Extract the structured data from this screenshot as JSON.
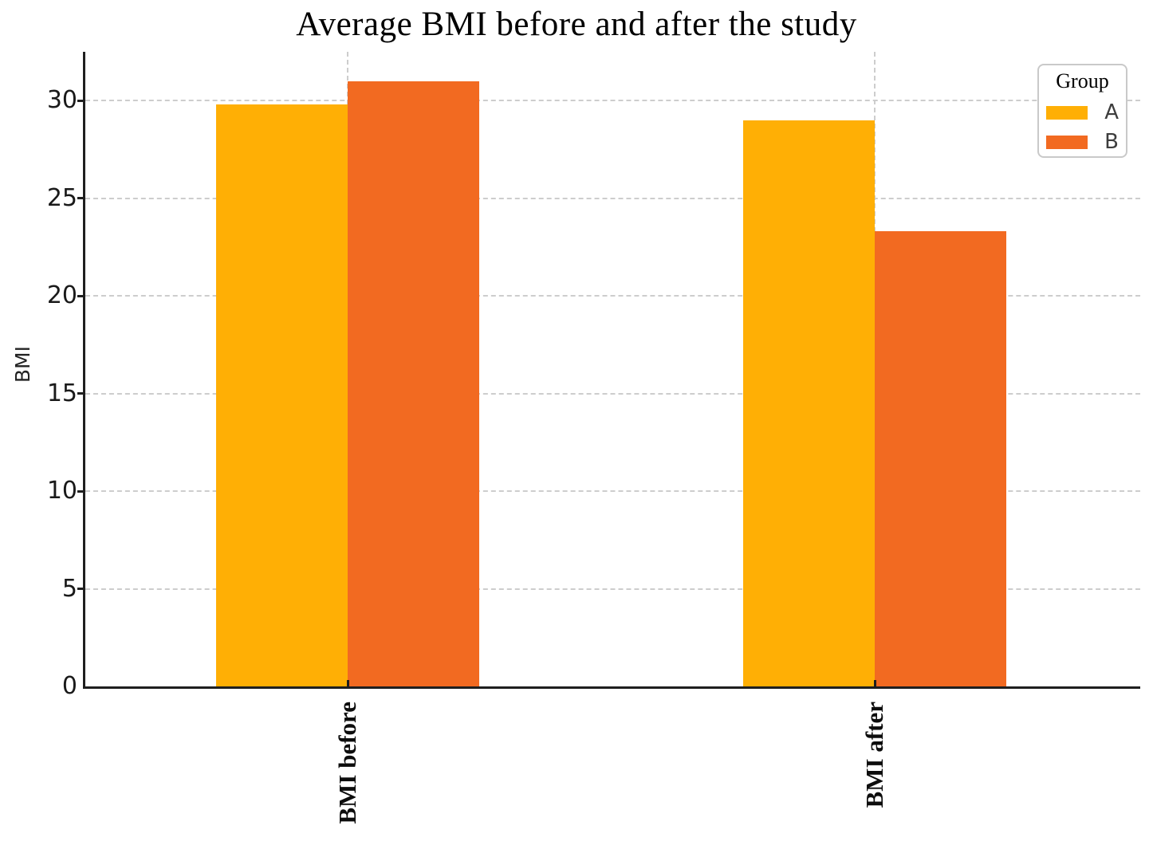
{
  "title": "Average BMI before and after the study",
  "chart_data": {
    "type": "bar",
    "title": "Average BMI before and after the study",
    "xlabel": "",
    "ylabel": "BMI",
    "categories": [
      "BMI before",
      "BMI after"
    ],
    "series": [
      {
        "name": "A",
        "color": "#FFAF05",
        "values": [
          29.8,
          29.0
        ]
      },
      {
        "name": "B",
        "color": "#F26A21",
        "values": [
          31.0,
          23.3
        ]
      }
    ],
    "ylim": [
      0,
      32.5
    ],
    "yticks": [
      0,
      5,
      10,
      15,
      20,
      25,
      30
    ],
    "legend": {
      "title": "Group",
      "position": "top-right-inside",
      "entries": [
        "A",
        "B"
      ]
    },
    "grid": {
      "horizontal": "dashed at each y tick",
      "vertical": "dashed at each category center"
    }
  },
  "colors": {
    "bar_a": "#FFAF05",
    "bar_b": "#F26A21",
    "grid": "#CDCDCD",
    "axis": "#1F1F1F",
    "text": "#1A1A1A",
    "legend_border": "#C9C9C9",
    "legend_background": "#FFFFFF"
  }
}
